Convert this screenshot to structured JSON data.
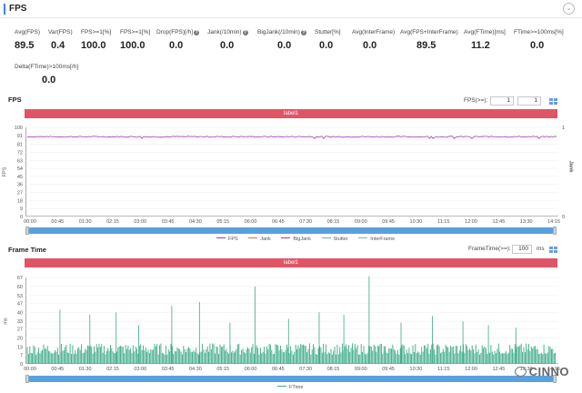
{
  "header": {
    "title": "FPS",
    "collapse_icon": "chevron-down-icon"
  },
  "metrics": [
    {
      "label": "Avg(FPS)",
      "value": "89.5",
      "help": false
    },
    {
      "label": "Var(FPS)",
      "value": "0.4",
      "help": false
    },
    {
      "label": "FPS>=1[%]",
      "value": "100.0",
      "help": false
    },
    {
      "label": "FPS>=1[%]",
      "value": "100.0",
      "help": false
    },
    {
      "label": "Drop(FPS)[/h]",
      "value": "0.0",
      "help": true
    },
    {
      "label": "Jank(/10min)",
      "value": "0.0",
      "help": true
    },
    {
      "label": "BigJank(/10min)",
      "value": "0.0",
      "help": true
    },
    {
      "label": "Stutter[%]",
      "value": "0.0",
      "help": false
    },
    {
      "label": "Avg(InterFrame)",
      "value": "0.0",
      "help": false
    },
    {
      "label": "Avg(FPS+InterFrame)",
      "value": "89.5",
      "help": false
    },
    {
      "label": "Avg(FTime)[ms]",
      "value": "11.2",
      "help": false
    },
    {
      "label": "FTime>=100ms[%]",
      "value": "0.0",
      "help": false
    },
    {
      "label": "Delta(FTime)>100ms[/h]",
      "value": "0.0",
      "help": false
    }
  ],
  "fps_section": {
    "title": "FPS",
    "control_label": "FPS(>=):",
    "input1": "1",
    "input2": "1",
    "label_bar": "label1",
    "y_axis_title": "FPS",
    "y2_axis_title": "Jank",
    "legend": [
      "FPS",
      "Jank",
      "BigJank",
      "Stutter",
      "InterFrame"
    ]
  },
  "ftime_section": {
    "title": "Frame Time",
    "control_label": "FrameTime(>=):",
    "input": "100",
    "unit": "ms",
    "label_bar": "label1",
    "y_axis_title": "ms",
    "legend": [
      "FTime"
    ]
  },
  "watermark": "CINNO",
  "colors": {
    "fps_line": "#a040b0",
    "jank": "#e07030",
    "bigjank": "#c04060",
    "stutter": "#70b0a0",
    "interframe": "#70c090",
    "ftime": "#3aaa88",
    "label_bar": "#e05566",
    "scrollbar": "#5aa0dc"
  },
  "chart_data": [
    {
      "type": "line",
      "title": "FPS",
      "ylabel": "FPS",
      "y2label": "Jank",
      "ylim": [
        0,
        100
      ],
      "y2lim": [
        0,
        1
      ],
      "yticks": [
        0,
        9,
        18,
        27,
        36,
        45,
        54,
        63,
        72,
        81,
        91,
        100
      ],
      "y2ticks": [
        0,
        1
      ],
      "x_tick_labels": [
        "00:00",
        "00:45",
        "01:30",
        "02:15",
        "03:00",
        "03:45",
        "04:30",
        "05:15",
        "06:00",
        "06:45",
        "07:30",
        "08:15",
        "09:00",
        "09:45",
        "10:30",
        "11:15",
        "12:00",
        "12:45",
        "13:30",
        "14:15"
      ],
      "series": [
        {
          "name": "FPS",
          "approx_value": 89.5,
          "range": [
            88,
            91
          ]
        },
        {
          "name": "Jank",
          "values": []
        },
        {
          "name": "BigJank",
          "values": []
        },
        {
          "name": "Stutter",
          "values": []
        },
        {
          "name": "InterFrame",
          "values": []
        }
      ]
    },
    {
      "type": "bar",
      "title": "Frame Time",
      "ylabel": "ms",
      "ylim": [
        0,
        67
      ],
      "yticks": [
        0,
        7,
        13,
        20,
        27,
        33,
        40,
        47,
        53,
        60,
        67
      ],
      "x_tick_labels": [
        "00:00",
        "00:45",
        "01:30",
        "02:15",
        "03:00",
        "03:45",
        "04:30",
        "05:15",
        "06:00",
        "06:45",
        "07:30",
        "08:15",
        "09:00",
        "09:45",
        "10:30",
        "11:15",
        "12:00",
        "12:45",
        "13:30",
        "14:15"
      ],
      "series": [
        {
          "name": "FTime",
          "approx_value": 11.2,
          "range": [
            7,
            16
          ],
          "spikes": [
            42,
            38,
            40,
            30,
            45,
            48,
            32,
            60,
            35,
            40,
            38,
            68,
            32,
            37,
            33,
            30,
            28
          ]
        }
      ]
    }
  ]
}
